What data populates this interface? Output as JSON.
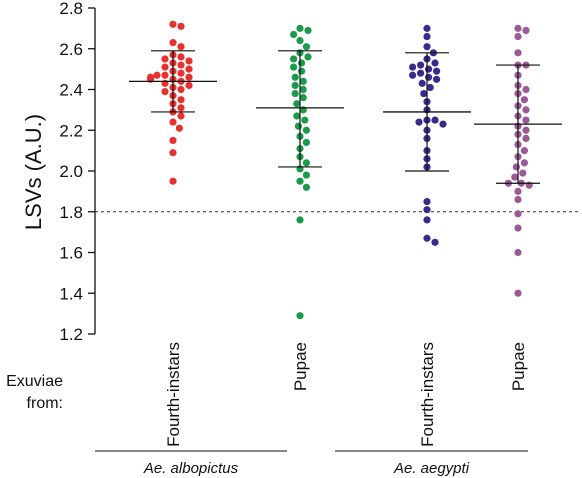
{
  "chart_data": {
    "type": "scatter",
    "ylabel": "LSVs (A.U.)",
    "ylim": [
      1.2,
      2.8
    ],
    "yticks": [
      "1.2",
      "1.4",
      "1.6",
      "1.8",
      "2.0",
      "2.2",
      "2.4",
      "2.6",
      "2.8"
    ],
    "threshold": 1.8,
    "row_label": "Exuviae\nfrom:",
    "categories": [
      "Fourth-instars",
      "Pupae",
      "Fourth-instars",
      "Pupae"
    ],
    "groups": [
      {
        "name": "Ae. albopictus",
        "categories": [
          0,
          1
        ]
      },
      {
        "name": "Ae. aegypti",
        "categories": [
          2,
          3
        ]
      }
    ],
    "series": [
      {
        "color": "#e8312f",
        "mean": 2.44,
        "sd_upper": 2.59,
        "sd_lower": 2.29,
        "values": [
          2.72,
          2.71,
          2.63,
          2.61,
          2.57,
          2.56,
          2.55,
          2.54,
          2.53,
          2.52,
          2.51,
          2.5,
          2.49,
          2.48,
          2.47,
          2.47,
          2.46,
          2.46,
          2.45,
          2.45,
          2.44,
          2.43,
          2.42,
          2.41,
          2.4,
          2.39,
          2.37,
          2.35,
          2.33,
          2.31,
          2.29,
          2.27,
          2.24,
          2.21,
          2.15,
          2.09,
          1.95
        ]
      },
      {
        "color": "#1a9a4a",
        "mean": 2.31,
        "sd_upper": 2.59,
        "sd_lower": 2.02,
        "values": [
          2.7,
          2.69,
          2.67,
          2.64,
          2.61,
          2.58,
          2.56,
          2.55,
          2.53,
          2.51,
          2.49,
          2.46,
          2.44,
          2.42,
          2.4,
          2.38,
          2.36,
          2.33,
          2.3,
          2.27,
          2.25,
          2.22,
          2.2,
          2.17,
          2.14,
          2.11,
          2.07,
          2.04,
          2.01,
          1.98,
          1.95,
          1.92,
          1.76,
          1.29
        ]
      },
      {
        "color": "#3b2a8c",
        "mean": 2.29,
        "sd_upper": 2.58,
        "sd_lower": 2.0,
        "values": [
          2.7,
          2.66,
          2.61,
          2.58,
          2.55,
          2.53,
          2.52,
          2.51,
          2.5,
          2.49,
          2.48,
          2.47,
          2.46,
          2.45,
          2.43,
          2.41,
          2.38,
          2.34,
          2.3,
          2.25,
          2.25,
          2.24,
          2.23,
          2.2,
          2.16,
          2.1,
          2.06,
          2.02,
          1.85,
          1.81,
          1.76,
          1.67,
          1.65
        ]
      },
      {
        "color": "#9a5a96",
        "mean": 2.23,
        "sd_upper": 2.52,
        "sd_lower": 1.94,
        "values": [
          2.7,
          2.69,
          2.66,
          2.58,
          2.52,
          2.52,
          2.47,
          2.42,
          2.4,
          2.38,
          2.35,
          2.32,
          2.3,
          2.27,
          2.25,
          2.22,
          2.2,
          2.18,
          2.16,
          2.13,
          2.1,
          2.07,
          2.04,
          2.02,
          1.99,
          1.97,
          1.94,
          1.94,
          1.93,
          1.9,
          1.86,
          1.79,
          1.72,
          1.6,
          1.4
        ]
      }
    ]
  }
}
